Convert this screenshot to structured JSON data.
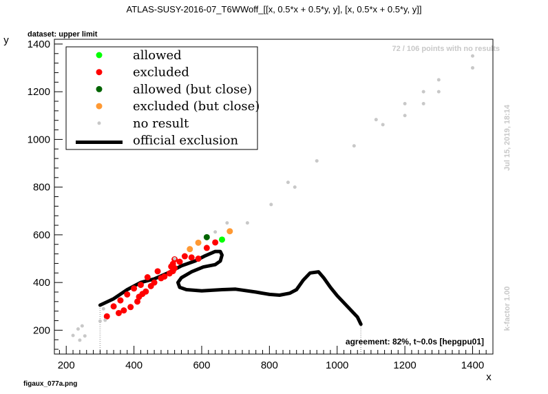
{
  "chart_data": {
    "type": "scatter",
    "title": "ATLAS-SUSY-2016-07_T6WWoff_[[x, 0.5*x + 0.5*y, y], [x, 0.5*x + 0.5*y, y]]",
    "subtitle": "dataset: upper limit",
    "xlabel": "x",
    "ylabel": "y",
    "xlim": [
      165,
      1460
    ],
    "ylim": [
      100,
      1420
    ],
    "xticks": [
      200,
      400,
      600,
      800,
      1000,
      1200,
      1400
    ],
    "yticks": [
      200,
      400,
      600,
      800,
      1000,
      1200,
      1400
    ],
    "grid": false,
    "legend_position": "top-left",
    "legend": [
      {
        "label": "allowed",
        "color": "#00ff00",
        "marker": "dot"
      },
      {
        "label": "excluded",
        "color": "#ff0000",
        "marker": "dot"
      },
      {
        "label": "allowed (but close)",
        "color": "#006400",
        "marker": "dot"
      },
      {
        "label": "excluded (but close)",
        "color": "#ff9933",
        "marker": "dot"
      },
      {
        "label": "no result",
        "color": "#c8c8c8",
        "marker": "small-dot"
      },
      {
        "label": "official exclusion",
        "color": "#000000",
        "marker": "line"
      }
    ],
    "series": [
      {
        "name": "allowed",
        "color": "#00ff00",
        "points": [
          [
            660,
            580
          ]
        ]
      },
      {
        "name": "excluded",
        "color": "#ff0000",
        "points": [
          [
            320,
            258
          ],
          [
            340,
            300
          ],
          [
            355,
            272
          ],
          [
            360,
            325
          ],
          [
            370,
            283
          ],
          [
            380,
            350
          ],
          [
            390,
            297
          ],
          [
            400,
            375
          ],
          [
            410,
            320
          ],
          [
            415,
            340
          ],
          [
            420,
            390
          ],
          [
            425,
            352
          ],
          [
            435,
            362
          ],
          [
            440,
            422
          ],
          [
            450,
            385
          ],
          [
            460,
            400
          ],
          [
            470,
            447
          ],
          [
            480,
            418
          ],
          [
            490,
            425
          ],
          [
            505,
            438
          ],
          [
            510,
            467
          ],
          [
            515,
            448
          ],
          [
            515,
            478
          ],
          [
            520,
            460
          ],
          [
            520,
            497
          ],
          [
            535,
            487
          ],
          [
            550,
            510
          ],
          [
            570,
            505
          ],
          [
            590,
            500
          ],
          [
            615,
            545
          ],
          [
            640,
            568
          ]
        ]
      },
      {
        "name": "allowed (but close)",
        "color": "#006400",
        "points": [
          [
            615,
            590
          ]
        ]
      },
      {
        "name": "excluded (but close)",
        "color": "#ff9933",
        "points": [
          [
            565,
            540
          ],
          [
            590,
            567
          ],
          [
            683,
            615
          ]
        ]
      },
      {
        "name": "no result",
        "color": "#c8c8c8",
        "points": [
          [
            220,
            178
          ],
          [
            235,
            205
          ],
          [
            240,
            158
          ],
          [
            247,
            218
          ],
          [
            255,
            176
          ],
          [
            300,
            238
          ],
          [
            310,
            290
          ],
          [
            315,
            242
          ],
          [
            520,
            500
          ],
          [
            640,
            612
          ],
          [
            675,
            650
          ],
          [
            735,
            650
          ],
          [
            805,
            727
          ],
          [
            855,
            820
          ],
          [
            875,
            800
          ],
          [
            940,
            910
          ],
          [
            1050,
            973
          ],
          [
            1115,
            1083
          ],
          [
            1135,
            1062
          ],
          [
            1200,
            1100
          ],
          [
            1200,
            1150
          ],
          [
            1255,
            1150
          ],
          [
            1255,
            1200
          ],
          [
            1300,
            1200
          ],
          [
            1300,
            1250
          ],
          [
            1400,
            1300
          ],
          [
            1400,
            1350
          ]
        ]
      },
      {
        "name": "official exclusion",
        "color": "#000000",
        "type": "line",
        "points": [
          [
            300,
            305
          ],
          [
            340,
            332
          ],
          [
            380,
            370
          ],
          [
            420,
            400
          ],
          [
            460,
            415
          ],
          [
            500,
            440
          ],
          [
            540,
            470
          ],
          [
            580,
            490
          ],
          [
            610,
            512
          ],
          [
            640,
            530
          ],
          [
            655,
            530
          ],
          [
            660,
            515
          ],
          [
            655,
            490
          ],
          [
            640,
            475
          ],
          [
            605,
            465
          ],
          [
            570,
            445
          ],
          [
            540,
            420
          ],
          [
            530,
            400
          ],
          [
            535,
            380
          ],
          [
            555,
            370
          ],
          [
            600,
            365
          ],
          [
            660,
            370
          ],
          [
            700,
            372
          ],
          [
            760,
            360
          ],
          [
            800,
            350
          ],
          [
            830,
            347
          ],
          [
            860,
            355
          ],
          [
            880,
            370
          ],
          [
            900,
            410
          ],
          [
            920,
            440
          ],
          [
            945,
            445
          ],
          [
            960,
            420
          ],
          [
            980,
            380
          ],
          [
            1000,
            345
          ],
          [
            1030,
            300
          ],
          [
            1060,
            255
          ],
          [
            1070,
            225
          ]
        ]
      }
    ],
    "reference_lines": [
      {
        "x": 300,
        "y_from": 100,
        "y_to": 300,
        "style": "dotted",
        "color": "#bbbbbb"
      },
      {
        "x": 1070,
        "y_from": 100,
        "y_to": 225,
        "style": "dotted",
        "color": "#bbbbbb"
      }
    ],
    "annotations": {
      "no_results": "72 / 106 points with no results",
      "timestamp": "Jul 15, 2019, 18:14",
      "kfactor": "k-factor 1.00",
      "agreement": "agreement: 82%, t~0.0s [hepgpu01]",
      "filename": "figaux_077a.png"
    }
  }
}
